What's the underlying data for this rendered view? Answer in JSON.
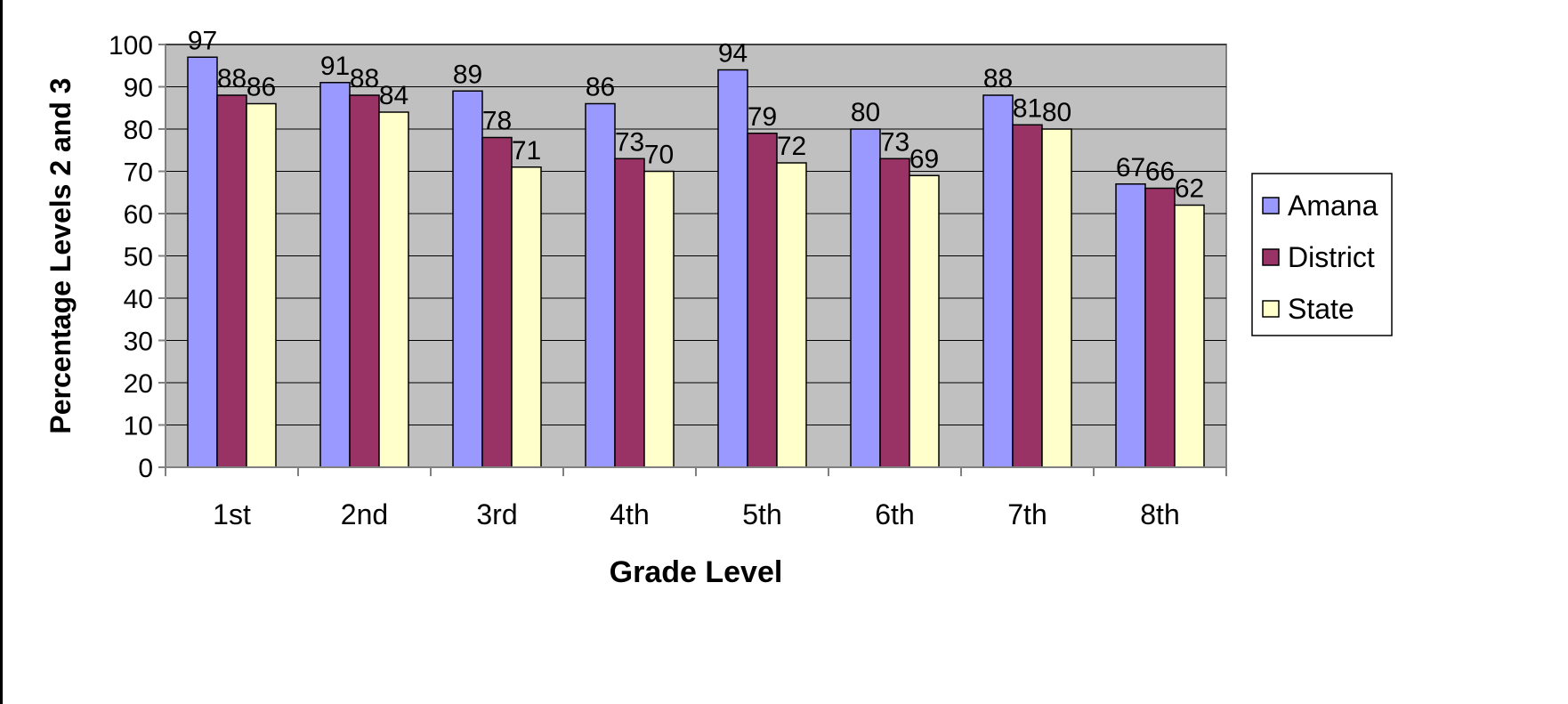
{
  "chart_data": {
    "type": "bar",
    "title": "",
    "xlabel": "Grade Level",
    "ylabel": "Percentage Levels 2 and 3",
    "categories": [
      "1st",
      "2nd",
      "3rd",
      "4th",
      "5th",
      "6th",
      "7th",
      "8th"
    ],
    "series": [
      {
        "name": "Amana",
        "color": "#9999FF",
        "values": [
          97,
          91,
          89,
          86,
          94,
          80,
          88,
          67
        ]
      },
      {
        "name": "District",
        "color": "#993366",
        "values": [
          88,
          88,
          78,
          73,
          79,
          73,
          81,
          66
        ]
      },
      {
        "name": "State",
        "color": "#FFFFCC",
        "values": [
          86,
          84,
          71,
          70,
          72,
          69,
          80,
          62
        ]
      }
    ],
    "ylim": [
      0,
      100
    ],
    "yticks": [
      0,
      10,
      20,
      30,
      40,
      50,
      60,
      70,
      80,
      90,
      100
    ],
    "grid": true,
    "plot_background": "#C0C0C0",
    "legend_position": "right"
  }
}
